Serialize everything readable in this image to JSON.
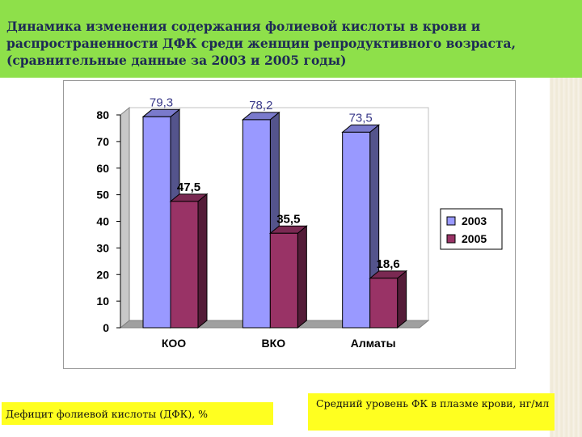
{
  "header": {
    "title": "Динамика изменения содержания фолиевой кислоты в крови и распространенности ДФК среди женщин репродуктивного возраста, (сравнительные данные за 2003 и 2005 годы)",
    "background": "#8ee04a",
    "text_color": "#1d2a55"
  },
  "chart_data": {
    "type": "bar",
    "categories": [
      "КОО",
      "ВКО",
      "Алматы"
    ],
    "series": [
      {
        "name": "2003",
        "values": [
          79.3,
          78.2,
          73.5
        ],
        "color": "#9999ff",
        "labels": [
          "79,3",
          "78,2",
          "73,5"
        ]
      },
      {
        "name": "2005",
        "values": [
          47.5,
          35.5,
          18.6
        ],
        "color": "#993366",
        "labels": [
          "47,5",
          "35,5",
          "18,6"
        ]
      }
    ],
    "ylim": [
      0,
      80
    ],
    "yticks": [
      "0",
      "10",
      "20",
      "30",
      "40",
      "50",
      "60",
      "70",
      "80"
    ],
    "grid": false,
    "legend": "right",
    "style": "3d"
  },
  "captions": {
    "left": "Дефицит фолиевой кислоты (ДФК), %",
    "right": "Средний уровень ФК в плазме крови, нг/мл",
    "background": "#ffff20"
  }
}
